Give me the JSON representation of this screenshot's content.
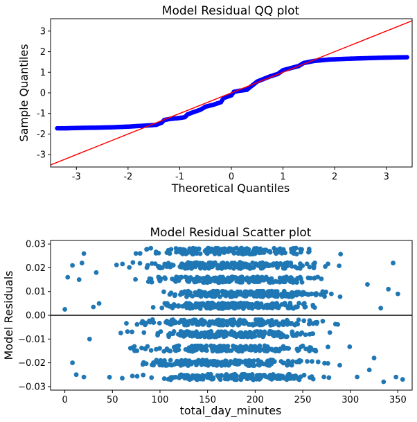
{
  "chart_data": [
    {
      "type": "scatter",
      "title": "Model Residual QQ plot",
      "xlabel": "Theoretical Quantiles",
      "ylabel": "Sample Quantiles",
      "xlim": [
        -3.5,
        3.5
      ],
      "ylim": [
        -3.6,
        3.6
      ],
      "xticks": [
        -3,
        -2,
        -1,
        0,
        1,
        2,
        3
      ],
      "yticks": [
        -3,
        -2,
        -1,
        0,
        1,
        2,
        3
      ],
      "grid": false,
      "point_color": "#0000ff",
      "reference_line": {
        "color": "#ff0000",
        "slope": 1,
        "intercept": 0
      },
      "qq_curve": [
        [
          -3.37,
          -1.72
        ],
        [
          -3.2,
          -1.72
        ],
        [
          -3.05,
          -1.71
        ],
        [
          -2.9,
          -1.7
        ],
        [
          -2.6,
          -1.69
        ],
        [
          -2.3,
          -1.67
        ],
        [
          -2.0,
          -1.64
        ],
        [
          -1.8,
          -1.61
        ],
        [
          -1.6,
          -1.58
        ],
        [
          -1.45,
          -1.55
        ],
        [
          -1.35,
          -1.45
        ],
        [
          -1.3,
          -1.32
        ],
        [
          -1.2,
          -1.27
        ],
        [
          -1.0,
          -1.22
        ],
        [
          -0.9,
          -1.18
        ],
        [
          -0.85,
          -1.05
        ],
        [
          -0.75,
          -0.95
        ],
        [
          -0.6,
          -0.82
        ],
        [
          -0.5,
          -0.67
        ],
        [
          -0.35,
          -0.58
        ],
        [
          -0.2,
          -0.45
        ],
        [
          -0.15,
          -0.25
        ],
        [
          0.0,
          -0.12
        ],
        [
          0.05,
          0.05
        ],
        [
          0.15,
          0.1
        ],
        [
          0.3,
          0.15
        ],
        [
          0.4,
          0.35
        ],
        [
          0.5,
          0.55
        ],
        [
          0.6,
          0.65
        ],
        [
          0.75,
          0.8
        ],
        [
          0.9,
          0.92
        ],
        [
          1.0,
          1.1
        ],
        [
          1.15,
          1.2
        ],
        [
          1.3,
          1.3
        ],
        [
          1.4,
          1.45
        ],
        [
          1.6,
          1.55
        ],
        [
          1.9,
          1.62
        ],
        [
          2.3,
          1.66
        ],
        [
          2.7,
          1.69
        ],
        [
          3.0,
          1.71
        ],
        [
          3.2,
          1.72
        ],
        [
          3.4,
          1.73
        ]
      ]
    },
    {
      "type": "scatter",
      "title": "Model Residual Scatter plot",
      "xlabel": "total_day_minutes",
      "ylabel": "Model Residuals",
      "xlim": [
        -15,
        365
      ],
      "ylim": [
        -0.0315,
        0.0315
      ],
      "xticks": [
        0,
        50,
        100,
        150,
        200,
        250,
        300,
        350
      ],
      "yticks": [
        -0.03,
        -0.02,
        -0.01,
        0.0,
        0.01,
        0.02,
        0.03
      ],
      "ytick_labels": [
        "−0.03",
        "−0.02",
        "−0.01",
        "0.00",
        "0.01",
        "0.02",
        "0.03"
      ],
      "xtick_labels": [
        "0",
        "50",
        "100",
        "150",
        "200",
        "250",
        "300",
        "350"
      ],
      "grid": false,
      "point_color": "#1f77b4",
      "hline": {
        "y": 0.0,
        "color": "#000000"
      },
      "bands": [
        {
          "y": 0.027,
          "spread": 0.0013,
          "xmin": 45,
          "xmax": 300
        },
        {
          "y": 0.021,
          "spread": 0.0013,
          "xmin": 40,
          "xmax": 305
        },
        {
          "y": 0.015,
          "spread": 0.0012,
          "xmin": 50,
          "xmax": 305
        },
        {
          "y": 0.009,
          "spread": 0.0012,
          "xmin": 55,
          "xmax": 310
        },
        {
          "y": 0.004,
          "spread": 0.0012,
          "xmin": 60,
          "xmax": 300
        },
        {
          "y": -0.003,
          "spread": 0.0012,
          "xmin": 40,
          "xmax": 310
        },
        {
          "y": -0.008,
          "spread": 0.0012,
          "xmin": 45,
          "xmax": 305
        },
        {
          "y": -0.014,
          "spread": 0.0012,
          "xmin": 40,
          "xmax": 310
        },
        {
          "y": -0.02,
          "spread": 0.0012,
          "xmin": 35,
          "xmax": 310
        },
        {
          "y": -0.026,
          "spread": 0.0012,
          "xmin": 35,
          "xmax": 315
        }
      ],
      "outliers": [
        [
          0,
          0.0025
        ],
        [
          3,
          0.016
        ],
        [
          8,
          0.021
        ],
        [
          15,
          0.015
        ],
        [
          18,
          0.022
        ],
        [
          20,
          0.026
        ],
        [
          8,
          -0.02
        ],
        [
          12,
          -0.025
        ],
        [
          20,
          -0.026
        ],
        [
          26,
          -0.01
        ],
        [
          30,
          0.0035
        ],
        [
          33,
          0.018
        ],
        [
          36,
          0.005
        ],
        [
          340,
          0.011
        ],
        [
          345,
          0.022
        ],
        [
          350,
          0.009
        ],
        [
          348,
          -0.026
        ],
        [
          355,
          -0.027
        ],
        [
          335,
          -0.028
        ],
        [
          332,
          0.003
        ],
        [
          325,
          -0.018
        ],
        [
          320,
          -0.023
        ],
        [
          318,
          0.013
        ]
      ],
      "band_points_per_band": 190
    }
  ]
}
